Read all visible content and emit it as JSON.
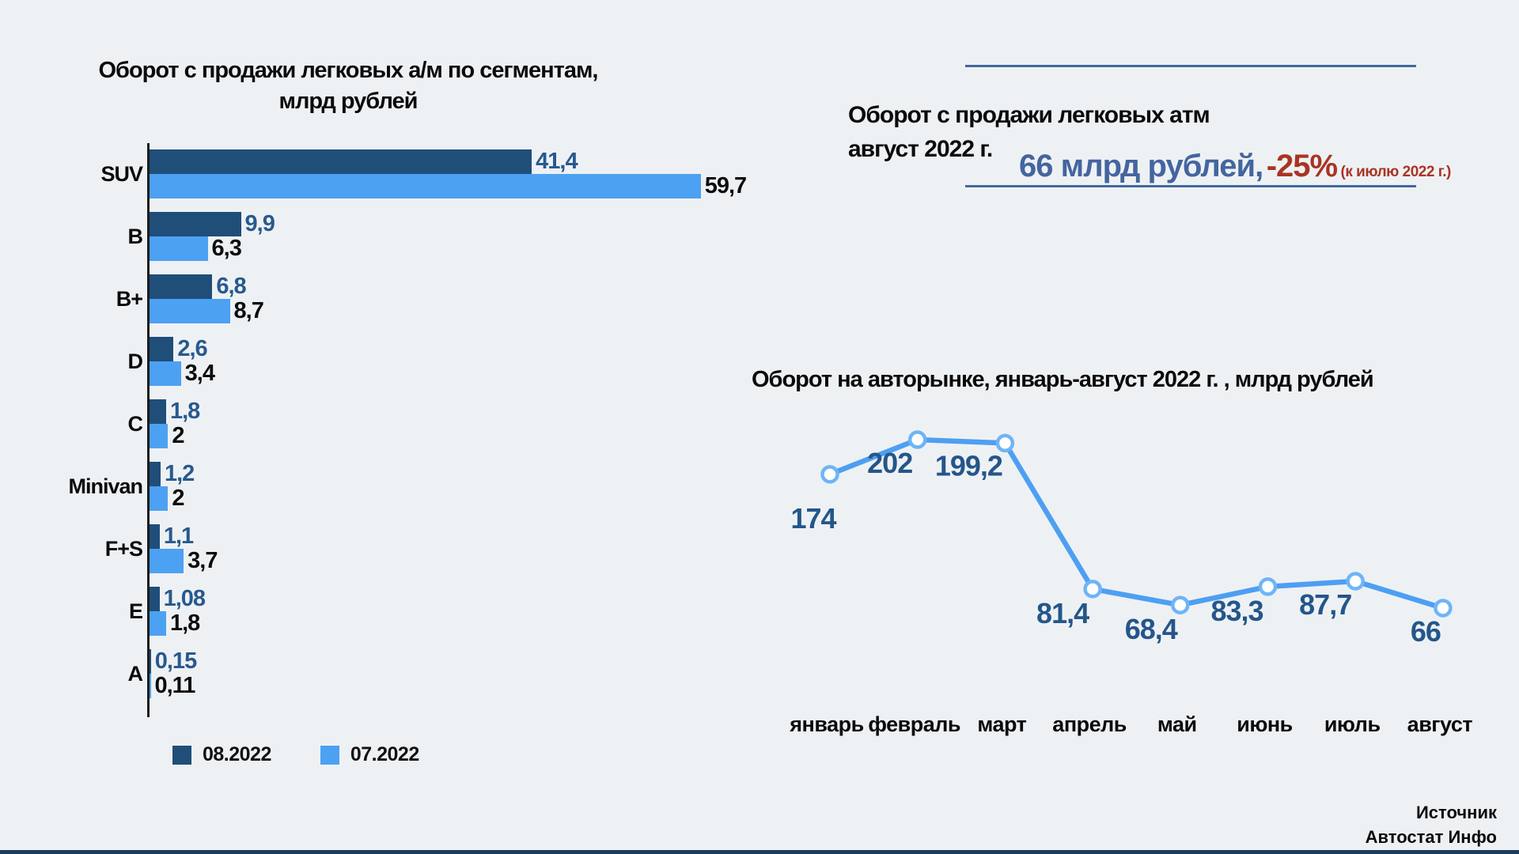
{
  "chart_data": [
    {
      "type": "bar",
      "orientation": "horizontal",
      "title": "Оборот с продажи легковых а/м по сегментам, млрд рублей",
      "categories": [
        "SUV",
        "B",
        "B+",
        "D",
        "C",
        "Minivan",
        "F+S",
        "E",
        "A"
      ],
      "series": [
        {
          "name": "08.2022",
          "color": "#1f4e79",
          "values": [
            41.4,
            9.9,
            6.8,
            2.6,
            1.8,
            1.2,
            1.1,
            1.08,
            0.15
          ],
          "labels": [
            "41,4",
            "9,9",
            "6,8",
            "2,6",
            "1,8",
            "1,2",
            "1,1",
            "1,08",
            "0,15"
          ]
        },
        {
          "name": "07.2022",
          "color": "#4da1f2",
          "values": [
            59.7,
            6.3,
            8.7,
            3.4,
            2,
            2,
            3.7,
            1.8,
            0.11
          ],
          "labels": [
            "59,7",
            "6,3",
            "8,7",
            "3,4",
            "2",
            "2",
            "3,7",
            "1,8",
            "0,11"
          ]
        }
      ],
      "legend_position": "bottom",
      "axis_max": 60,
      "grid": false
    },
    {
      "type": "line",
      "title": "Оборот на авторынке, январь-август 2022 г. ,  млрд рублей",
      "categories": [
        "январь",
        "февраль",
        "март",
        "апрель",
        "май",
        "июнь",
        "июль",
        "август"
      ],
      "values": [
        174,
        202,
        199.2,
        81.4,
        68.4,
        83.3,
        87.7,
        66
      ],
      "labels": [
        "174",
        "202",
        "199,2",
        "81,4",
        "68,4",
        "83,3",
        "87,7",
        "66"
      ],
      "line_color": "#4d9ff2",
      "marker_stroke": "#6fb4f7",
      "marker_fill": "#ffffff",
      "label_color": "#24568a",
      "grid": false,
      "legend_position": "none"
    }
  ],
  "stat_panel": {
    "heading": "Оборот с продажи легковых атм август 2022 г.",
    "heading_line1": "Оборот с продажи легковых атм",
    "heading_line2": "август 2022 г.",
    "value": "66 млрд рублей,",
    "change": "-25%",
    "change_note": "(к июлю 2022 г.)",
    "value_color": "#44659f",
    "change_color": "#a93423"
  },
  "source": {
    "line1": "Источник",
    "line2": "Автостат Инфо"
  },
  "colors": {
    "background": "#eef1f4",
    "series_08_2022": "#1f4e79",
    "series_07_2022": "#4da1f2",
    "line": "#4d9ff2",
    "accent_blue_text": "#44659f",
    "accent_red_text": "#a93423",
    "separator_rule": "#3f6a9e",
    "footer_strip": "#1d3c5e"
  }
}
